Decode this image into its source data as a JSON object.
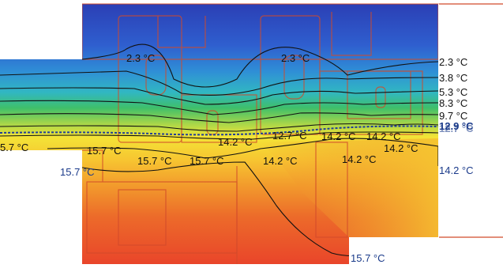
{
  "isotherm_labels": {
    "top_left": "2.3 °C",
    "top_mid": "2.3 °C",
    "right_2_3": "2.3 °C",
    "right_3_8": "3.8 °C",
    "right_5_3": "5.3 °C",
    "right_8_3": "8.3 °C",
    "right_9_7": "9.7 °C",
    "right_12_9": "12.9 °C",
    "right_12_7_overlap": "12.7 °C",
    "mid_12_7": "12.7 °C",
    "mid_14_2_a": "14.2 °C",
    "mid_14_2_b": "14.2 °C",
    "mid_14_2_c": "14.2 °C",
    "mid_14_2_d": "14.2 °C",
    "mid_14_2_e": "14.2 °C",
    "mid_14_2_f": "14.2 °C",
    "right_14_2": "14.2 °C",
    "left_15_7_edge": "5.7 °C",
    "left_15_7_a": "15.7 °C",
    "left_15_7_b": "15.7 °C",
    "left_15_7_c": "15.7 °C",
    "left_15_7_d": "15.7 °C",
    "bottom_15_7": "15.7 °C"
  },
  "colors": {
    "cold": "#2b3fb5",
    "cool": "#2f8fd6",
    "mid": "#3fbf6a",
    "warm_yellow": "#f3e437",
    "hot": "#e9452a",
    "outline": "#d24a2a",
    "label_blue": "#1a3a8a"
  }
}
